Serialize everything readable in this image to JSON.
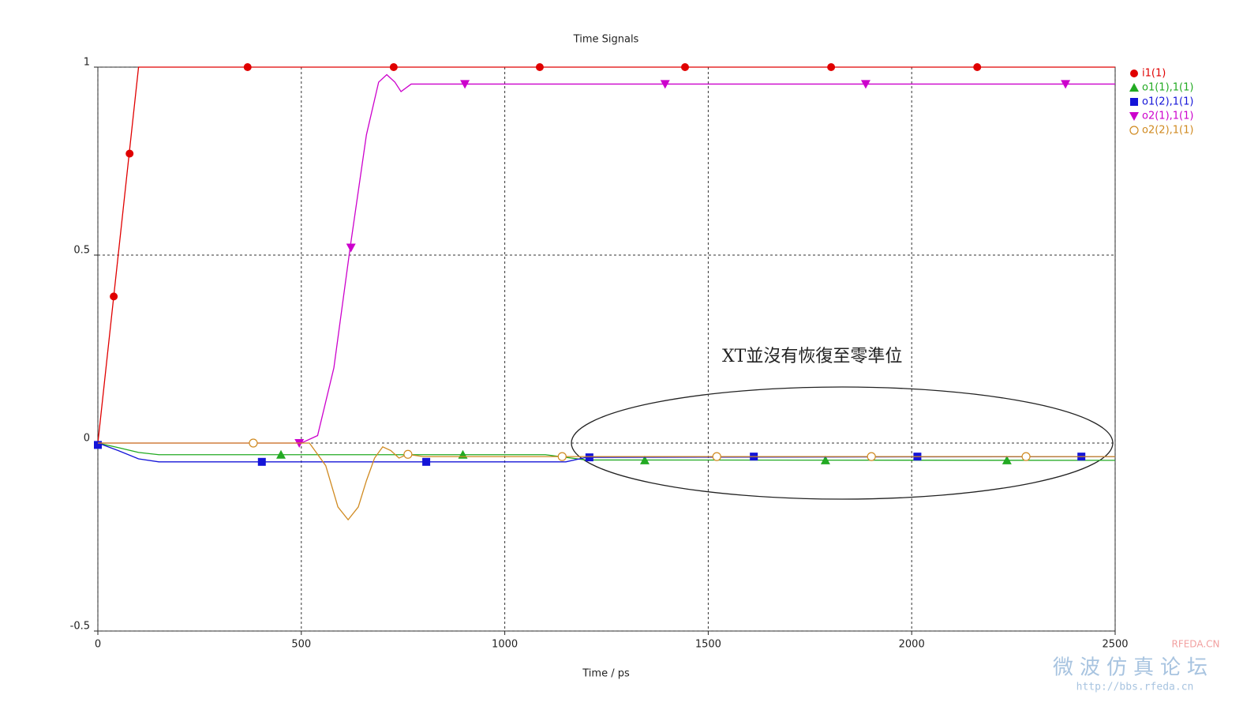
{
  "chart_data": {
    "type": "line",
    "title": "Time Signals",
    "x_label": "Time / ps",
    "xlim": [
      0,
      2500
    ],
    "ylim": [
      -0.5,
      1
    ],
    "xticks": [
      0,
      500,
      1000,
      1500,
      2000,
      2500
    ],
    "yticks": [
      -0.5,
      0,
      0.5,
      1
    ],
    "grid": true,
    "legend": "right",
    "annotation": "XT並沒有恢復至零準位",
    "watermark": {
      "logo": "RFEDA.CN",
      "name": "微波仿真论坛",
      "url": "http://bbs.rfeda.cn"
    },
    "series": [
      {
        "name": "i1(1)",
        "color": "#e00000",
        "marker": "circle",
        "x": [
          0,
          100,
          2500
        ],
        "values": [
          0,
          1,
          1
        ],
        "marker_x": [
          39,
          78,
          368,
          727,
          1086,
          1443,
          1802,
          2161
        ],
        "marker_values": [
          0.39,
          0.77,
          1,
          1,
          1,
          1,
          1,
          1
        ]
      },
      {
        "name": "o1(1),1(1)",
        "color": "#22aa22",
        "marker": "triangle-up",
        "x": [
          0,
          50,
          100,
          150,
          1100,
          1200,
          2500
        ],
        "values": [
          0,
          -0.012,
          -0.025,
          -0.031,
          -0.031,
          -0.045,
          -0.046
        ],
        "marker_x": [
          450,
          897,
          1344,
          1788,
          2234
        ],
        "marker_values": [
          -0.031,
          -0.031,
          -0.046,
          -0.046,
          -0.046
        ]
      },
      {
        "name": "o1(2),1(1)",
        "color": "#1414d8",
        "marker": "square",
        "x": [
          0,
          50,
          100,
          150,
          1150,
          1200,
          2500
        ],
        "values": [
          0,
          -0.02,
          -0.042,
          -0.05,
          -0.05,
          -0.038,
          -0.036
        ],
        "marker_x": [
          0,
          403,
          807,
          1208,
          1612,
          2014,
          2417
        ],
        "marker_values": [
          -0.005,
          -0.05,
          -0.05,
          -0.038,
          -0.036,
          -0.036,
          -0.036
        ]
      },
      {
        "name": "o2(1),1(1)",
        "color": "#cc00cc",
        "marker": "triangle-down",
        "x": [
          0,
          500,
          540,
          580,
          620,
          660,
          690,
          710,
          730,
          745,
          770,
          800,
          2500
        ],
        "values": [
          0,
          0,
          0.02,
          0.2,
          0.52,
          0.82,
          0.96,
          0.98,
          0.96,
          0.935,
          0.955,
          0.955,
          0.955
        ],
        "marker_x": [
          495,
          622,
          902,
          1394,
          1887,
          2378
        ],
        "marker_values": [
          0,
          0.52,
          0.955,
          0.955,
          0.955,
          0.955
        ]
      },
      {
        "name": "o2(2),1(1)",
        "color": "#d08a20",
        "marker": "circle-open",
        "x": [
          0,
          520,
          560,
          590,
          615,
          640,
          660,
          680,
          700,
          720,
          740,
          760,
          800,
          1141,
          2500
        ],
        "values": [
          0,
          0,
          -0.06,
          -0.17,
          -0.204,
          -0.17,
          -0.1,
          -0.04,
          -0.01,
          -0.02,
          -0.04,
          -0.03,
          -0.036,
          -0.036,
          -0.036
        ],
        "marker_x": [
          382,
          762,
          1141,
          1521,
          1901,
          2281
        ],
        "marker_values": [
          0,
          -0.03,
          -0.036,
          -0.036,
          -0.036,
          -0.036
        ]
      }
    ]
  }
}
